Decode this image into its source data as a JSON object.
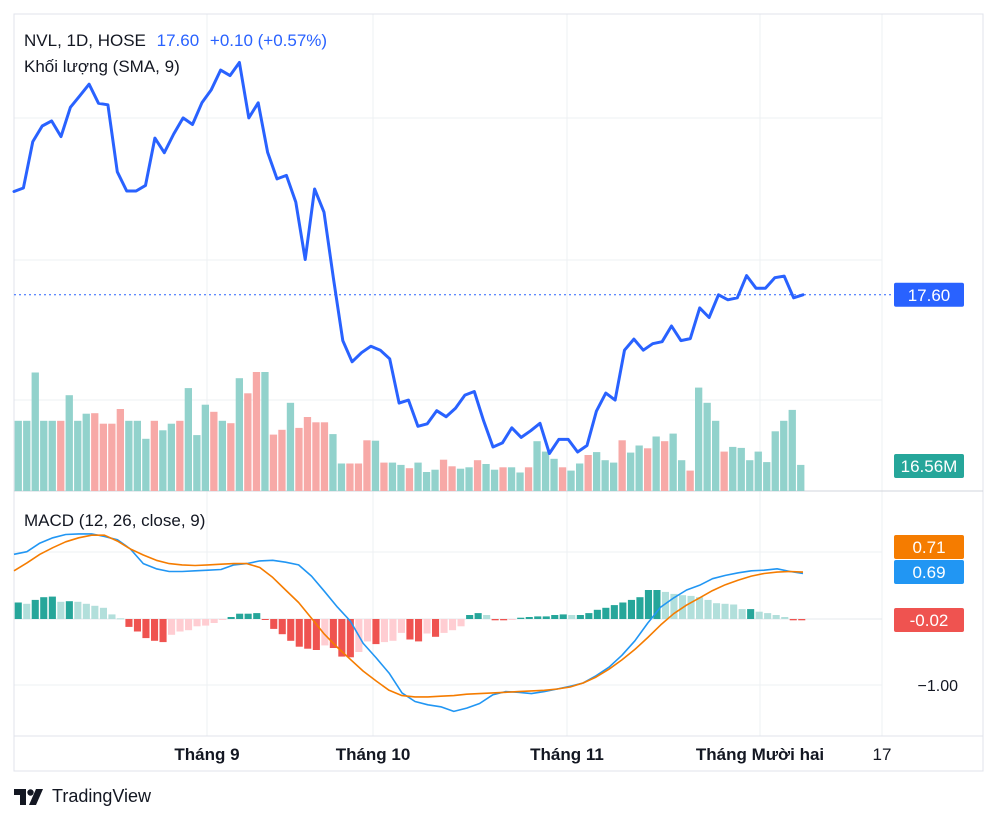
{
  "legend": {
    "symbol": "NVL, 1D, HOSE",
    "price": "17.60",
    "change": "+0.10 (+0.57%)",
    "volume_label": "Khối lượng (SMA, 9)",
    "macd_label": "MACD (12, 26, close, 9)"
  },
  "brand": {
    "name": "TradingView"
  },
  "chart_data": [
    {
      "type": "line",
      "series": [
        {
          "values": [
            19.65,
            19.72,
            20.64,
            20.95,
            21.05,
            20.74,
            21.32,
            21.55,
            21.78,
            21.4,
            21.37,
            20.04,
            19.66,
            19.66,
            19.77,
            20.71,
            20.42,
            20.79,
            21.11,
            20.98,
            21.41,
            21.67,
            22.06,
            21.95,
            22.21,
            21.11,
            21.41,
            20.43,
            19.9,
            19.97,
            19.44,
            18.3,
            19.7,
            19.24,
            17.93,
            16.69,
            16.27,
            16.45,
            16.58,
            16.5,
            16.33,
            15.45,
            15.51,
            14.99,
            15.04,
            15.3,
            15.18,
            15.35,
            15.61,
            15.68,
            15.1,
            14.58,
            14.66,
            14.96,
            14.77,
            14.9,
            15.05,
            14.45,
            14.73,
            14.73,
            14.48,
            14.61,
            15.29,
            15.65,
            15.51,
            16.5,
            16.72,
            16.5,
            16.63,
            16.67,
            16.98,
            16.69,
            16.73,
            17.34,
            17.15,
            17.6,
            17.5,
            17.54,
            17.98,
            17.73,
            17.73,
            17.94,
            17.97,
            17.54,
            17.6
          ],
          "color": "#2962ff"
        }
      ],
      "last_value_tag": "17.60"
    },
    {
      "type": "bar",
      "series": [
        {
          "values": [
            14.8,
            14.8,
            25.0,
            14.8,
            14.8,
            14.8,
            20.2,
            14.8,
            16.3,
            16.4,
            14.2,
            14.2,
            17.3,
            14.8,
            14.8,
            11.0,
            14.8,
            12.8,
            14.2,
            14.8,
            21.7,
            11.8,
            18.2,
            16.7,
            14.8,
            14.3,
            23.8,
            20.6,
            25.1,
            25.1,
            11.9,
            12.9,
            18.6,
            13.3,
            15.6,
            14.5,
            14.5,
            12.0,
            5.8,
            5.8,
            5.8,
            10.7,
            10.6,
            6.0,
            6.0,
            5.5,
            4.8,
            6.0,
            4.0,
            4.5,
            6.6,
            5.2,
            4.7,
            5.0,
            6.5,
            5.7,
            4.5,
            5.0,
            5.0,
            3.9,
            5.0,
            10.5,
            8.3,
            6.8,
            5.0,
            4.3,
            5.8,
            7.6,
            8.2,
            6.5,
            6.0,
            10.7,
            8.1,
            9.6,
            9.0,
            11.5,
            10.5,
            12.1,
            6.5,
            4.3,
            21.8,
            18.6,
            14.8,
            8.3,
            9.3,
            9.1,
            6.5,
            8.3,
            6.1,
            12.6,
            14.8,
            17.1,
            5.5
          ],
          "up_color": "#92d2cc",
          "down_color": "#f7a9a7"
        }
      ],
      "last_value_tag": "16.56M"
    },
    {
      "type": "line",
      "series": [
        {
          "name": "MACD",
          "values": [
            0.98,
            1.02,
            1.15,
            1.23,
            1.28,
            1.29,
            1.29,
            1.25,
            1.2,
            1.06,
            0.84,
            0.76,
            0.72,
            0.72,
            0.73,
            0.74,
            0.75,
            0.82,
            0.84,
            0.88,
            0.89,
            0.86,
            0.82,
            0.65,
            0.42,
            0.18,
            -0.03,
            -0.37,
            -0.59,
            -0.82,
            -1.12,
            -1.25,
            -1.3,
            -1.33,
            -1.4,
            -1.35,
            -1.28,
            -1.15,
            -1.1,
            -1.11,
            -1.13,
            -1.1,
            -1.06,
            -1.02,
            -0.97,
            -0.86,
            -0.73,
            -0.55,
            -0.33,
            -0.06,
            0.18,
            0.32,
            0.44,
            0.51,
            0.61,
            0.66,
            0.7,
            0.73,
            0.74,
            0.76,
            0.72,
            0.69
          ],
          "color": "#2196f3"
        },
        {
          "name": "Signal",
          "values": [
            0.73,
            0.85,
            0.98,
            1.08,
            1.17,
            1.23,
            1.27,
            1.27,
            1.18,
            1.06,
            0.97,
            0.89,
            0.84,
            0.82,
            0.81,
            0.82,
            0.83,
            0.84,
            0.84,
            0.78,
            0.63,
            0.44,
            0.25,
            0.01,
            -0.23,
            -0.43,
            -0.61,
            -0.79,
            -0.94,
            -1.08,
            -1.16,
            -1.18,
            -1.18,
            -1.17,
            -1.16,
            -1.14,
            -1.13,
            -1.12,
            -1.11,
            -1.1,
            -1.09,
            -1.08,
            -1.06,
            -1.03,
            -0.97,
            -0.88,
            -0.76,
            -0.62,
            -0.46,
            -0.28,
            -0.09,
            0.08,
            0.21,
            0.32,
            0.43,
            0.52,
            0.59,
            0.65,
            0.69,
            0.71,
            0.72,
            0.71
          ],
          "color": "#f57c00"
        }
      ],
      "histogram": {
        "values": [
          0.25,
          0.23,
          0.29,
          0.33,
          0.34,
          0.26,
          0.27,
          0.26,
          0.23,
          0.2,
          0.17,
          0.07,
          0.01,
          -0.12,
          -0.19,
          -0.29,
          -0.33,
          -0.35,
          -0.24,
          -0.19,
          -0.17,
          -0.11,
          -0.1,
          -0.06,
          -0.01,
          0.03,
          0.08,
          0.08,
          0.09,
          -0.01,
          -0.15,
          -0.23,
          -0.33,
          -0.42,
          -0.45,
          -0.47,
          -0.4,
          -0.44,
          -0.57,
          -0.58,
          -0.5,
          -0.34,
          -0.38,
          -0.35,
          -0.33,
          -0.21,
          -0.31,
          -0.34,
          -0.22,
          -0.27,
          -0.21,
          -0.17,
          -0.11,
          0.06,
          0.09,
          0.06,
          -0.02,
          -0.02,
          -0.01,
          0.02,
          0.03,
          0.04,
          0.04,
          0.06,
          0.07,
          0.06,
          0.06,
          0.09,
          0.14,
          0.17,
          0.21,
          0.25,
          0.29,
          0.33,
          0.44,
          0.44,
          0.41,
          0.38,
          0.36,
          0.35,
          0.33,
          0.29,
          0.24,
          0.23,
          0.22,
          0.15,
          0.15,
          0.11,
          0.09,
          0.06,
          0.03,
          -0.02,
          -0.02
        ]
      },
      "tags": {
        "macd": "0.69",
        "signal": "0.71",
        "histogram": "-0.02"
      },
      "y_ticks": [
        -1.0
      ],
      "y_tick_labels": [
        "−1.00"
      ]
    }
  ],
  "x_axis": {
    "labels": [
      "Tháng 9",
      "Tháng 10",
      "Tháng 11",
      "Tháng Mười hai",
      "17"
    ]
  }
}
